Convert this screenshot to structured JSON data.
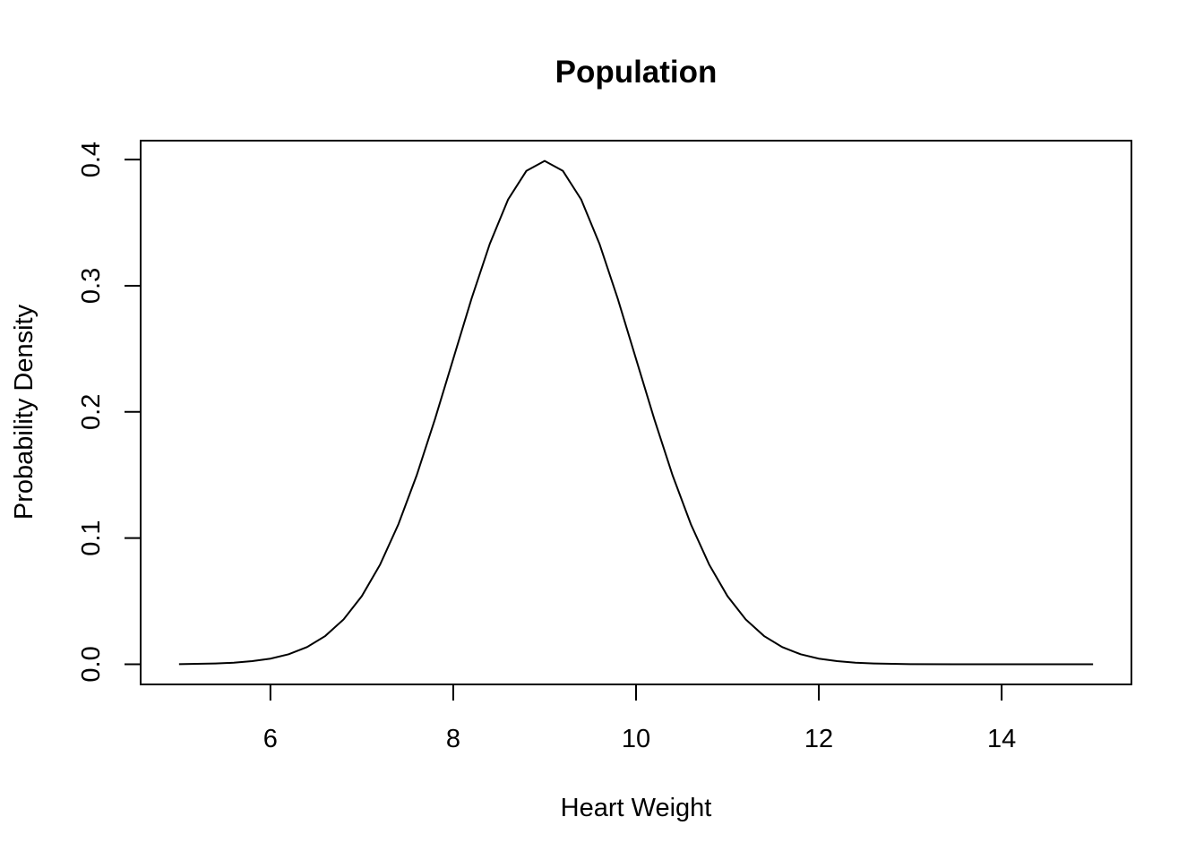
{
  "chart_data": {
    "type": "line",
    "title": "Population",
    "xlabel": "Heart Weight",
    "ylabel": "Probability Density",
    "xlim": [
      4.58,
      15.42
    ],
    "ylim": [
      -0.016,
      0.415
    ],
    "x_ticks": [
      6,
      8,
      10,
      12,
      14
    ],
    "y_ticks": [
      0.0,
      0.1,
      0.2,
      0.3,
      0.4
    ],
    "x_tick_labels": [
      "6",
      "8",
      "10",
      "12",
      "14"
    ],
    "y_tick_labels": [
      "0.0",
      "0.1",
      "0.2",
      "0.3",
      "0.4"
    ],
    "grid": false,
    "series": [
      {
        "x": [
          5.0,
          5.2,
          5.4,
          5.6,
          5.8,
          6.0,
          6.2,
          6.4,
          6.6,
          6.8,
          7.0,
          7.2,
          7.4,
          7.6,
          7.8,
          8.0,
          8.2,
          8.4,
          8.6,
          8.8,
          9.0,
          9.2,
          9.4,
          9.6,
          9.8,
          10.0,
          10.2,
          10.4,
          10.6,
          10.8,
          11.0,
          11.2,
          11.4,
          11.6,
          11.8,
          12.0,
          12.2,
          12.4,
          12.6,
          12.8,
          13.0,
          13.5,
          14.0,
          14.5,
          15.0
        ],
        "y": [
          0.0001,
          0.0003,
          0.0006,
          0.0012,
          0.0025,
          0.0044,
          0.0079,
          0.0136,
          0.0224,
          0.0355,
          0.054,
          0.079,
          0.1109,
          0.1497,
          0.1942,
          0.242,
          0.2897,
          0.3332,
          0.3683,
          0.391,
          0.3989,
          0.391,
          0.3683,
          0.3332,
          0.2897,
          0.242,
          0.1942,
          0.1497,
          0.1109,
          0.079,
          0.054,
          0.0355,
          0.0224,
          0.0136,
          0.0079,
          0.0044,
          0.0025,
          0.0012,
          0.0006,
          0.0003,
          0.0001,
          0.0,
          0.0,
          0.0,
          0.0
        ]
      }
    ]
  }
}
